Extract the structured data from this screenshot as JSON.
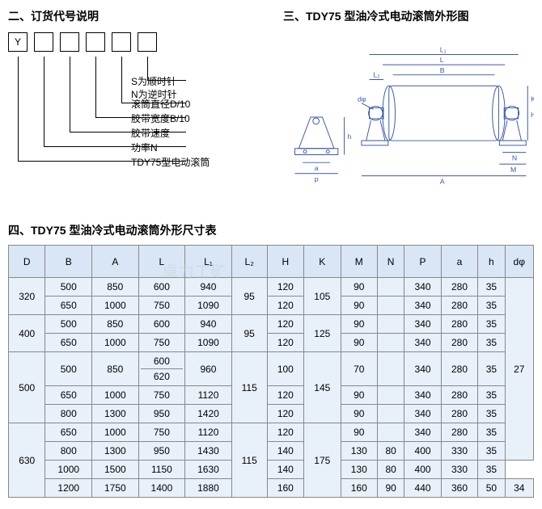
{
  "section2": {
    "title": "二、订货代号说明",
    "boxes": [
      "Y",
      "",
      "",
      "",
      "",
      ""
    ],
    "labels": [
      "S为顺时针",
      "N为逆时针",
      "滚筒直径D/10",
      "胶带宽度B/10",
      "胶带速度",
      "功率N",
      "TDY75型电动滚筒"
    ]
  },
  "section3": {
    "title": "三、TDY75 型油冷式电动滚筒外形图",
    "dims": [
      "L₁",
      "L",
      "B",
      "L₂",
      "dφ",
      "a",
      "p",
      "h",
      "A",
      "H",
      "K",
      "N",
      "M"
    ],
    "line_color": "#3858a8"
  },
  "section4": {
    "title": "四、TDY75 型油冷式电动滚筒外形尺寸表",
    "columns": [
      "D",
      "B",
      "A",
      "L",
      "L₁",
      "L₂",
      "H",
      "K",
      "M",
      "N",
      "P",
      "a",
      "h",
      "dφ"
    ],
    "header_bg": "#d9e6f5",
    "row_bg": "#e8f0f9",
    "border_color": "#888888",
    "groups": [
      {
        "D": "320",
        "rows": [
          {
            "B": "500",
            "A": "850",
            "L": "600",
            "L1": "940",
            "L2": {
              "v": "95",
              "span": 2
            },
            "H": "120",
            "K": {
              "v": "105",
              "span": 2
            },
            "M": "90",
            "N": "",
            "P": "340",
            "a": "280",
            "h": "35",
            "ds": {
              "v": "27",
              "span": 9
            }
          },
          {
            "B": "650",
            "A": "1000",
            "L": "750",
            "L1": "1090",
            "H": "120",
            "M": "90",
            "N": "",
            "P": "340",
            "a": "280",
            "h": "35"
          }
        ]
      },
      {
        "D": "400",
        "rows": [
          {
            "B": "500",
            "A": "850",
            "L": "600",
            "L1": "940",
            "L2": {
              "v": "95",
              "span": 2
            },
            "H": "120",
            "K": {
              "v": "125",
              "span": 2
            },
            "M": "90",
            "N": "",
            "P": "340",
            "a": "280",
            "h": "35"
          },
          {
            "B": "650",
            "A": "1000",
            "L": "750",
            "L1": "1090",
            "H": "120",
            "M": "90",
            "N": "",
            "P": "340",
            "a": "280",
            "h": "35"
          }
        ]
      },
      {
        "D": "500",
        "rows": [
          {
            "B": "500",
            "A": "850",
            "L": "600\n620",
            "L1": "960",
            "L2": {
              "v": "115",
              "span": 3
            },
            "H": "100",
            "K": {
              "v": "145",
              "span": 3
            },
            "M": "70",
            "N": "",
            "P": "340",
            "a": "280",
            "h": "35"
          },
          {
            "B": "650",
            "A": "1000",
            "L": "750",
            "L1": "1120",
            "H": "120",
            "M": "90",
            "N": "",
            "P": "340",
            "a": "280",
            "h": "35"
          },
          {
            "B": "800",
            "A": "1300",
            "L": "950",
            "L1": "1420",
            "H": "120",
            "M": "90",
            "N": "",
            "P": "340",
            "a": "280",
            "h": "35"
          }
        ]
      },
      {
        "D": "630",
        "rows": [
          {
            "B": "650",
            "A": "1000",
            "L": "750",
            "L1": "1120",
            "L2": {
              "v": "115",
              "span": 4
            },
            "H": "120",
            "K": {
              "v": "175",
              "span": 4
            },
            "M": "90",
            "N": "",
            "P": "340",
            "a": "280",
            "h": "35"
          },
          {
            "B": "800",
            "A": "1300",
            "L": "950",
            "L1": "1430",
            "H": "140",
            "M": "130",
            "N": "80",
            "P": "400",
            "a": "330",
            "h": "35"
          },
          {
            "B": "1000",
            "A": "1500",
            "L": "1150",
            "L1": "1630",
            "H": "140",
            "M": "130",
            "N": "80",
            "P": "400",
            "a": "330",
            "h": "35"
          },
          {
            "B": "1200",
            "A": "1750",
            "L": "1400",
            "L1": "1880",
            "H": "160",
            "M": "160",
            "N": "90",
            "P": "440",
            "a": "360",
            "h": "50",
            "ds": {
              "v": "34",
              "span": 1
            }
          }
        ]
      }
    ]
  },
  "watermark": "卓力工矿"
}
